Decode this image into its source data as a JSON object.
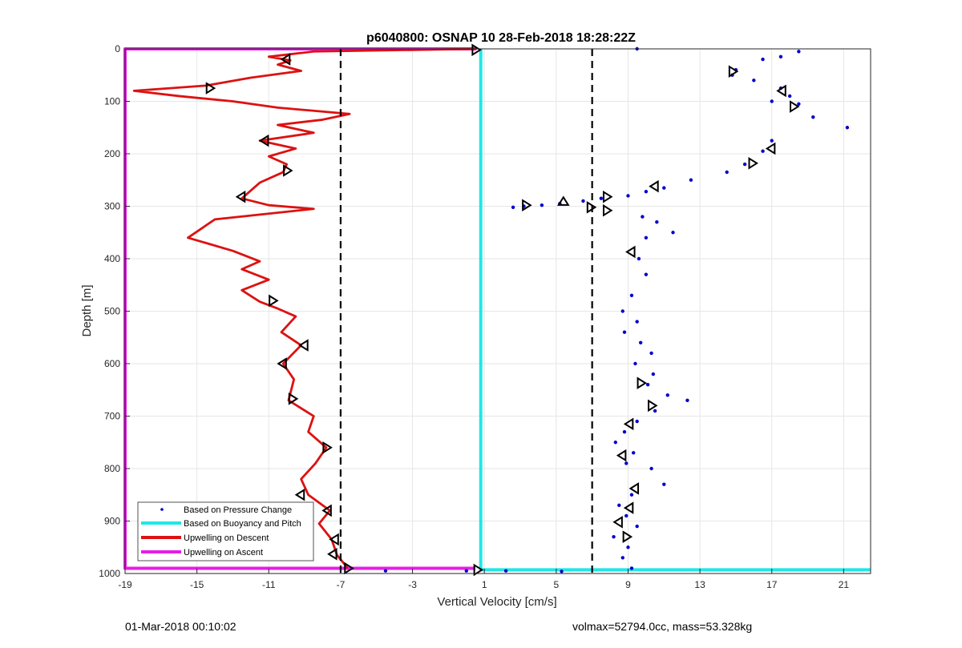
{
  "chart_data": {
    "type": "scatter",
    "title": "p6040800: OSNAP 10 28-Feb-2018 18:28:22Z",
    "xlabel": "Vertical Velocity [cm/s]",
    "ylabel": "Depth [m]",
    "xlim": [
      -19,
      22.5
    ],
    "ylim": [
      0,
      1000
    ],
    "y_reversed": true,
    "xticks": [
      -19,
      -15,
      -11,
      -7,
      -3,
      1,
      5,
      9,
      13,
      17,
      21
    ],
    "yticks": [
      0,
      100,
      200,
      300,
      400,
      500,
      600,
      700,
      800,
      900,
      1000
    ],
    "grid": true,
    "legend_position": "bottom-left",
    "colors": {
      "pressure": "#0000cc",
      "buoyancy": "#22e6e6",
      "descent": "#dd1111",
      "ascent": "#e61ee6",
      "threshold": "#000000"
    },
    "series": [
      {
        "name": "Based on Pressure Change",
        "style": "dots",
        "points": [
          [
            9.5,
            0
          ],
          [
            18.5,
            5
          ],
          [
            17.5,
            15
          ],
          [
            16.5,
            20
          ],
          [
            15,
            40
          ],
          [
            14.8,
            50
          ],
          [
            16,
            60
          ],
          [
            17.5,
            75
          ],
          [
            18,
            90
          ],
          [
            17,
            100
          ],
          [
            18.5,
            105
          ],
          [
            19.3,
            130
          ],
          [
            21.2,
            150
          ],
          [
            17,
            175
          ],
          [
            16.5,
            195
          ],
          [
            15.5,
            220
          ],
          [
            14.5,
            235
          ],
          [
            12.5,
            250
          ],
          [
            11,
            265
          ],
          [
            10,
            272
          ],
          [
            9,
            280
          ],
          [
            7.5,
            285
          ],
          [
            6.5,
            290
          ],
          [
            5.2,
            295
          ],
          [
            4.2,
            298
          ],
          [
            3.2,
            300
          ],
          [
            2.6,
            302
          ],
          [
            9.8,
            320
          ],
          [
            10.6,
            330
          ],
          [
            11.5,
            350
          ],
          [
            10,
            360
          ],
          [
            9.6,
            400
          ],
          [
            10,
            430
          ],
          [
            9.2,
            470
          ],
          [
            8.7,
            500
          ],
          [
            9.5,
            520
          ],
          [
            8.8,
            540
          ],
          [
            9.7,
            560
          ],
          [
            10.3,
            580
          ],
          [
            9.4,
            600
          ],
          [
            10.4,
            620
          ],
          [
            10.1,
            640
          ],
          [
            11.2,
            660
          ],
          [
            12.3,
            670
          ],
          [
            10.5,
            690
          ],
          [
            9.5,
            710
          ],
          [
            8.8,
            730
          ],
          [
            8.3,
            750
          ],
          [
            9.3,
            770
          ],
          [
            8.9,
            790
          ],
          [
            10.3,
            800
          ],
          [
            11,
            830
          ],
          [
            9.2,
            850
          ],
          [
            8.5,
            870
          ],
          [
            8.9,
            890
          ],
          [
            9.5,
            910
          ],
          [
            8.2,
            930
          ],
          [
            9.0,
            950
          ],
          [
            8.7,
            970
          ],
          [
            9.2,
            990
          ],
          [
            2.2,
            995
          ],
          [
            5.3,
            996
          ],
          [
            0.0,
            995
          ],
          [
            -4.5,
            995
          ]
        ]
      },
      {
        "name": "Based on Buoyancy and Pitch",
        "style": "line",
        "points": [
          [
            0.8,
            0
          ],
          [
            0.8,
            993
          ],
          [
            22.5,
            993
          ]
        ]
      },
      {
        "name": "Upwelling on Descent",
        "style": "line",
        "points": [
          [
            0.5,
            0
          ],
          [
            -3,
            2
          ],
          [
            -8.5,
            5
          ],
          [
            -11,
            15
          ],
          [
            -9.8,
            22
          ],
          [
            -10.5,
            30
          ],
          [
            -9.2,
            42
          ],
          [
            -12,
            55
          ],
          [
            -14.5,
            70
          ],
          [
            -18.5,
            80
          ],
          [
            -16,
            90
          ],
          [
            -13,
            100
          ],
          [
            -10.5,
            112
          ],
          [
            -6.5,
            124
          ],
          [
            -8,
            135
          ],
          [
            -10.5,
            145
          ],
          [
            -8.5,
            160
          ],
          [
            -11.5,
            175
          ],
          [
            -9.5,
            190
          ],
          [
            -11,
            205
          ],
          [
            -10,
            220
          ],
          [
            -10.2,
            235
          ],
          [
            -11.5,
            255
          ],
          [
            -12.5,
            285
          ],
          [
            -11,
            298
          ],
          [
            -8.5,
            305
          ],
          [
            -14,
            325
          ],
          [
            -15.5,
            360
          ],
          [
            -13,
            385
          ],
          [
            -11.5,
            405
          ],
          [
            -12.5,
            420
          ],
          [
            -11,
            440
          ],
          [
            -12.5,
            460
          ],
          [
            -11.5,
            482
          ],
          [
            -10.5,
            495
          ],
          [
            -9.5,
            510
          ],
          [
            -10.3,
            540
          ],
          [
            -9.2,
            565
          ],
          [
            -10.2,
            600
          ],
          [
            -9.6,
            630
          ],
          [
            -9.9,
            670
          ],
          [
            -8.5,
            700
          ],
          [
            -8.8,
            730
          ],
          [
            -7.8,
            760
          ],
          [
            -8.4,
            790
          ],
          [
            -9.2,
            820
          ],
          [
            -8.8,
            850
          ],
          [
            -7.6,
            880
          ],
          [
            -8.2,
            905
          ],
          [
            -7.5,
            935
          ],
          [
            -7.2,
            965
          ],
          [
            -6.6,
            990
          ]
        ]
      },
      {
        "name": "Upwelling on Ascent",
        "style": "line",
        "points": [
          [
            -19,
            0
          ],
          [
            0.5,
            0
          ],
          [
            -19,
            0
          ],
          [
            -19,
            990
          ],
          [
            0.5,
            990
          ]
        ]
      }
    ],
    "thresholds": [
      -7,
      7
    ],
    "markers": [
      {
        "x": 0.5,
        "y": 2,
        "dir": "right"
      },
      {
        "x": -10,
        "y": 20,
        "dir": "left"
      },
      {
        "x": -14.3,
        "y": 75,
        "dir": "right"
      },
      {
        "x": -11.2,
        "y": 175,
        "dir": "left"
      },
      {
        "x": -10,
        "y": 232,
        "dir": "right"
      },
      {
        "x": -12.5,
        "y": 282,
        "dir": "left"
      },
      {
        "x": -10.8,
        "y": 480,
        "dir": "right"
      },
      {
        "x": -9,
        "y": 565,
        "dir": "left"
      },
      {
        "x": -10.2,
        "y": 600,
        "dir": "left"
      },
      {
        "x": -9.7,
        "y": 667,
        "dir": "right"
      },
      {
        "x": -7.8,
        "y": 760,
        "dir": "right"
      },
      {
        "x": -9.2,
        "y": 850,
        "dir": "left"
      },
      {
        "x": -7.7,
        "y": 880,
        "dir": "left"
      },
      {
        "x": -7.3,
        "y": 935,
        "dir": "left"
      },
      {
        "x": -7.4,
        "y": 963,
        "dir": "left"
      },
      {
        "x": -6.6,
        "y": 990,
        "dir": "right"
      },
      {
        "x": 14.8,
        "y": 43,
        "dir": "right"
      },
      {
        "x": 17.6,
        "y": 80,
        "dir": "left"
      },
      {
        "x": 18.2,
        "y": 110,
        "dir": "right"
      },
      {
        "x": 17,
        "y": 190,
        "dir": "left"
      },
      {
        "x": 15.9,
        "y": 218,
        "dir": "right"
      },
      {
        "x": 10.5,
        "y": 262,
        "dir": "left"
      },
      {
        "x": 7.8,
        "y": 282,
        "dir": "right"
      },
      {
        "x": 5.4,
        "y": 292,
        "dir": "up"
      },
      {
        "x": 3.3,
        "y": 298,
        "dir": "right"
      },
      {
        "x": 6.9,
        "y": 302,
        "dir": "right"
      },
      {
        "x": 7.8,
        "y": 308,
        "dir": "right"
      },
      {
        "x": 9.2,
        "y": 387,
        "dir": "left"
      },
      {
        "x": 9.7,
        "y": 637,
        "dir": "right"
      },
      {
        "x": 10.3,
        "y": 680,
        "dir": "right"
      },
      {
        "x": 9.1,
        "y": 715,
        "dir": "left"
      },
      {
        "x": 8.7,
        "y": 775,
        "dir": "left"
      },
      {
        "x": 9.4,
        "y": 838,
        "dir": "left"
      },
      {
        "x": 9.1,
        "y": 875,
        "dir": "left"
      },
      {
        "x": 8.5,
        "y": 902,
        "dir": "left"
      },
      {
        "x": 8.9,
        "y": 930,
        "dir": "right"
      },
      {
        "x": 0.6,
        "y": 993,
        "dir": "right"
      }
    ]
  },
  "footer": {
    "left": "01-Mar-2018 00:10:02",
    "right": "volmax=52794.0cc, mass=53.328kg"
  }
}
